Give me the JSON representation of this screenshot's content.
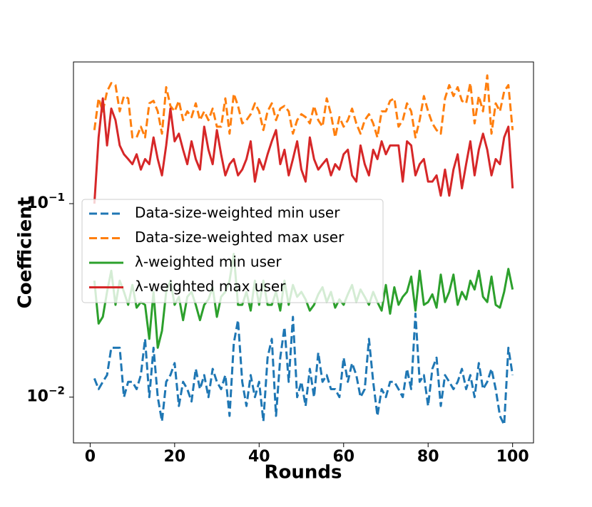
{
  "chart_data": {
    "type": "line",
    "x_label": "Rounds",
    "y_label": "Coefficient",
    "y_scale": "log",
    "xlim": [
      -3.95,
      104.95
    ],
    "xticks": [
      0,
      20,
      40,
      60,
      80,
      100
    ],
    "ylim": [
      0.0058,
      0.54
    ],
    "yticks": [
      {
        "value": 0.01,
        "label": "10^−2"
      },
      {
        "value": 0.1,
        "label": "10^−1"
      }
    ],
    "legend": "center left",
    "x": [
      1,
      2,
      3,
      4,
      5,
      6,
      7,
      8,
      9,
      10,
      11,
      12,
      13,
      14,
      15,
      16,
      17,
      18,
      19,
      20,
      21,
      22,
      23,
      24,
      25,
      26,
      27,
      28,
      29,
      30,
      31,
      32,
      33,
      34,
      35,
      36,
      37,
      38,
      39,
      40,
      41,
      42,
      43,
      44,
      45,
      46,
      47,
      48,
      49,
      50,
      51,
      52,
      53,
      54,
      55,
      56,
      57,
      58,
      59,
      60,
      61,
      62,
      63,
      64,
      65,
      66,
      67,
      68,
      69,
      70,
      71,
      72,
      73,
      74,
      75,
      76,
      77,
      78,
      79,
      80,
      81,
      82,
      83,
      84,
      85,
      86,
      87,
      88,
      89,
      90,
      91,
      92,
      93,
      94,
      95,
      96,
      97,
      98,
      99,
      100
    ],
    "series": [
      {
        "name": "Data-size-weighted min user",
        "color": "#1f77b4",
        "linestyle": "dashed",
        "values": [
          0.0125,
          0.011,
          0.012,
          0.013,
          0.018,
          0.018,
          0.018,
          0.01,
          0.012,
          0.012,
          0.011,
          0.013,
          0.02,
          0.01,
          0.018,
          0.01,
          0.0075,
          0.012,
          0.013,
          0.015,
          0.009,
          0.012,
          0.011,
          0.0095,
          0.014,
          0.011,
          0.013,
          0.01,
          0.014,
          0.012,
          0.011,
          0.013,
          0.008,
          0.019,
          0.025,
          0.012,
          0.009,
          0.013,
          0.01,
          0.012,
          0.0075,
          0.016,
          0.02,
          0.008,
          0.016,
          0.023,
          0.012,
          0.026,
          0.01,
          0.012,
          0.009,
          0.014,
          0.01,
          0.017,
          0.012,
          0.013,
          0.011,
          0.011,
          0.01,
          0.016,
          0.012,
          0.015,
          0.013,
          0.01,
          0.011,
          0.02,
          0.012,
          0.008,
          0.011,
          0.01,
          0.012,
          0.012,
          0.011,
          0.01,
          0.014,
          0.011,
          0.027,
          0.012,
          0.013,
          0.009,
          0.014,
          0.016,
          0.009,
          0.013,
          0.012,
          0.011,
          0.012,
          0.014,
          0.011,
          0.013,
          0.01,
          0.015,
          0.011,
          0.012,
          0.014,
          0.011,
          0.008,
          0.0072,
          0.018,
          0.013
        ]
      },
      {
        "name": "Data-size-weighted max user",
        "color": "#ff7f0e",
        "linestyle": "dashed",
        "values": [
          0.24,
          0.35,
          0.3,
          0.38,
          0.42,
          0.41,
          0.3,
          0.36,
          0.35,
          0.22,
          0.22,
          0.25,
          0.22,
          0.33,
          0.34,
          0.3,
          0.23,
          0.4,
          0.32,
          0.3,
          0.34,
          0.27,
          0.3,
          0.28,
          0.33,
          0.27,
          0.3,
          0.27,
          0.31,
          0.25,
          0.25,
          0.35,
          0.23,
          0.37,
          0.32,
          0.26,
          0.27,
          0.29,
          0.33,
          0.3,
          0.24,
          0.3,
          0.33,
          0.27,
          0.31,
          0.32,
          0.3,
          0.23,
          0.27,
          0.29,
          0.28,
          0.26,
          0.32,
          0.27,
          0.25,
          0.35,
          0.29,
          0.22,
          0.28,
          0.25,
          0.27,
          0.31,
          0.26,
          0.23,
          0.27,
          0.29,
          0.26,
          0.22,
          0.3,
          0.3,
          0.34,
          0.35,
          0.25,
          0.27,
          0.33,
          0.3,
          0.22,
          0.27,
          0.36,
          0.3,
          0.26,
          0.24,
          0.23,
          0.35,
          0.41,
          0.36,
          0.4,
          0.34,
          0.33,
          0.42,
          0.26,
          0.36,
          0.3,
          0.46,
          0.23,
          0.33,
          0.3,
          0.38,
          0.41,
          0.24
        ]
      },
      {
        "name": "λ-weighted min user",
        "color": "#2ca02c",
        "linestyle": "solid",
        "values": [
          0.04,
          0.024,
          0.026,
          0.035,
          0.045,
          0.03,
          0.04,
          0.035,
          0.03,
          0.038,
          0.029,
          0.031,
          0.03,
          0.02,
          0.035,
          0.018,
          0.022,
          0.035,
          0.04,
          0.03,
          0.033,
          0.025,
          0.033,
          0.035,
          0.03,
          0.025,
          0.03,
          0.032,
          0.037,
          0.026,
          0.033,
          0.035,
          0.04,
          0.055,
          0.03,
          0.03,
          0.035,
          0.028,
          0.04,
          0.03,
          0.04,
          0.03,
          0.03,
          0.035,
          0.028,
          0.04,
          0.03,
          0.038,
          0.033,
          0.035,
          0.032,
          0.028,
          0.03,
          0.034,
          0.037,
          0.031,
          0.035,
          0.029,
          0.032,
          0.03,
          0.034,
          0.038,
          0.031,
          0.036,
          0.033,
          0.03,
          0.035,
          0.031,
          0.028,
          0.038,
          0.027,
          0.037,
          0.03,
          0.033,
          0.035,
          0.042,
          0.028,
          0.045,
          0.03,
          0.031,
          0.034,
          0.029,
          0.043,
          0.031,
          0.035,
          0.043,
          0.03,
          0.035,
          0.032,
          0.04,
          0.036,
          0.045,
          0.033,
          0.031,
          0.042,
          0.03,
          0.029,
          0.035,
          0.046,
          0.036
        ]
      },
      {
        "name": "λ-weighted max user",
        "color": "#d62728",
        "linestyle": "solid",
        "values": [
          0.1,
          0.22,
          0.35,
          0.2,
          0.31,
          0.27,
          0.2,
          0.18,
          0.17,
          0.16,
          0.18,
          0.15,
          0.17,
          0.16,
          0.22,
          0.17,
          0.14,
          0.2,
          0.31,
          0.21,
          0.23,
          0.19,
          0.16,
          0.21,
          0.17,
          0.15,
          0.25,
          0.19,
          0.16,
          0.24,
          0.18,
          0.14,
          0.16,
          0.17,
          0.14,
          0.15,
          0.17,
          0.21,
          0.13,
          0.17,
          0.15,
          0.18,
          0.21,
          0.24,
          0.16,
          0.19,
          0.14,
          0.17,
          0.21,
          0.15,
          0.13,
          0.22,
          0.17,
          0.15,
          0.16,
          0.17,
          0.14,
          0.16,
          0.15,
          0.18,
          0.19,
          0.14,
          0.13,
          0.2,
          0.16,
          0.14,
          0.19,
          0.17,
          0.21,
          0.18,
          0.2,
          0.2,
          0.2,
          0.13,
          0.21,
          0.2,
          0.14,
          0.16,
          0.17,
          0.13,
          0.13,
          0.14,
          0.11,
          0.15,
          0.11,
          0.15,
          0.18,
          0.12,
          0.16,
          0.21,
          0.14,
          0.19,
          0.23,
          0.19,
          0.14,
          0.17,
          0.16,
          0.22,
          0.25,
          0.12
        ]
      }
    ]
  }
}
